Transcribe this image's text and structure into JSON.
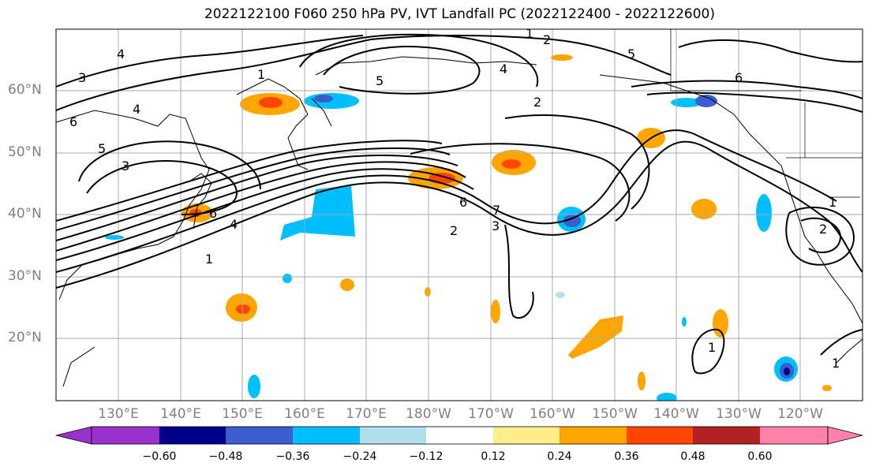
{
  "title": "2022122100 F060 250 hPa PV, IVT Landfall PC (2022122400 - 2022122600)",
  "lat_labels": [
    "60°N",
    "50°N",
    "40°N",
    "30°N",
    "20°N"
  ],
  "lon_labels": [
    "130°E",
    "140°E",
    "150°E",
    "160°E",
    "170°E",
    "180°W",
    "170°W",
    "160°W",
    "150°W",
    "140°W",
    "130°W",
    "120°W"
  ],
  "contour_labels": [
    "1",
    "2",
    "3",
    "4",
    "5",
    "6",
    "7"
  ],
  "colorbar": {
    "ticks": [
      "−0.60",
      "−0.48",
      "−0.36",
      "−0.24",
      "−0.12",
      "0.12",
      "0.24",
      "0.36",
      "0.48",
      "0.60"
    ],
    "colors": [
      "#9932cc",
      "#00008b",
      "#3a5fcd",
      "#00bfff",
      "#b2dfee",
      "#ffffff",
      "#ffec8b",
      "#ffa500",
      "#ff4500",
      "#b22222",
      "#ff82ab"
    ]
  }
}
